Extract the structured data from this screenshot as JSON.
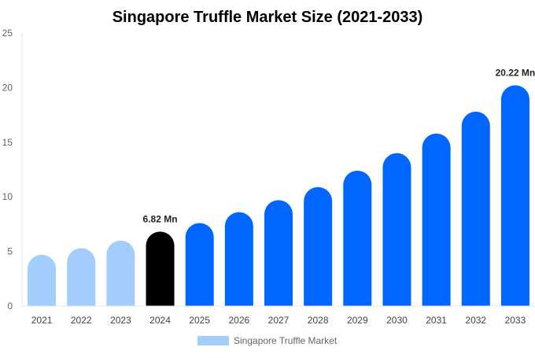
{
  "chart_data": {
    "type": "bar",
    "title": "Singapore Truffle Market Size (2021-2033)",
    "xlabel": "",
    "ylabel": "",
    "ylim": [
      0,
      25
    ],
    "yticks": [
      0,
      5,
      10,
      15,
      20,
      25
    ],
    "grid": false,
    "legend_position": "bottom",
    "categories": [
      "2021",
      "2022",
      "2023",
      "2024",
      "2025",
      "2026",
      "2027",
      "2028",
      "2029",
      "2030",
      "2031",
      "2032",
      "2033"
    ],
    "series": [
      {
        "name": "Singapore Truffle Market",
        "values": [
          4.7,
          5.3,
          6.0,
          6.82,
          7.6,
          8.6,
          9.7,
          10.9,
          12.4,
          14.0,
          15.8,
          17.8,
          20.22
        ],
        "colors": [
          "#a3cdfc",
          "#a3cdfc",
          "#a3cdfc",
          "#000000",
          "#0066ff",
          "#0066ff",
          "#0066ff",
          "#0066ff",
          "#0066ff",
          "#0066ff",
          "#0066ff",
          "#0066ff",
          "#0066ff"
        ]
      }
    ],
    "data_labels": [
      {
        "category": "2024",
        "text": "6.82 Mn"
      },
      {
        "category": "2033",
        "text": "20.22 Mn"
      }
    ],
    "legend_color": "#a3cdfc"
  }
}
